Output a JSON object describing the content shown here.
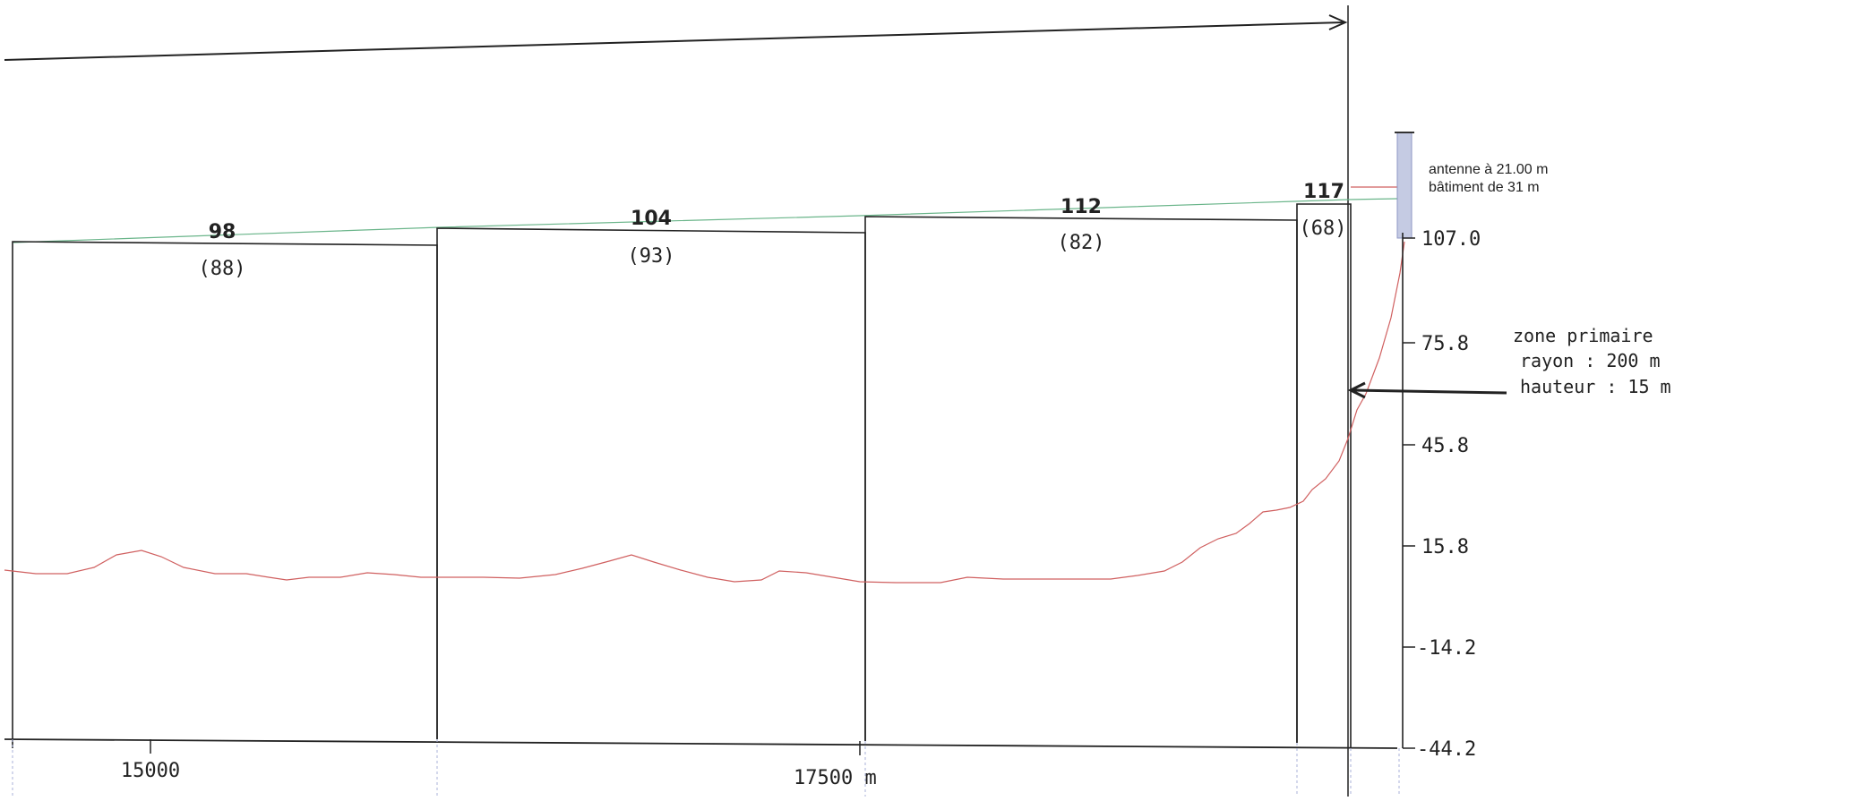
{
  "profile": {
    "sections": [
      {
        "height_label": "98",
        "sub_label": "(88)"
      },
      {
        "height_label": "104",
        "sub_label": "(93)"
      },
      {
        "height_label": "112",
        "sub_label": "(82)"
      },
      {
        "height_label": "117",
        "sub_label": "(68)"
      }
    ],
    "y_axis": {
      "ticks": [
        "107.0",
        "75.8",
        "45.8",
        "15.8",
        "-14.2",
        "-44.2"
      ]
    },
    "x_axis": {
      "tick_15000": "15000",
      "tick_17500": "17500 m"
    },
    "annotations": {
      "antenna": "antenne à 21.00 m",
      "building": "bâtiment de 31 m",
      "zone_title": "zone primaire",
      "zone_radius": "rayon : 200 m",
      "zone_height": "hauteur : 15 m"
    },
    "colors": {
      "terrain": "#d06060",
      "sight_line": "#6ab58a",
      "antenna_bar": "#c5cbe3",
      "lines": "#222222"
    }
  }
}
